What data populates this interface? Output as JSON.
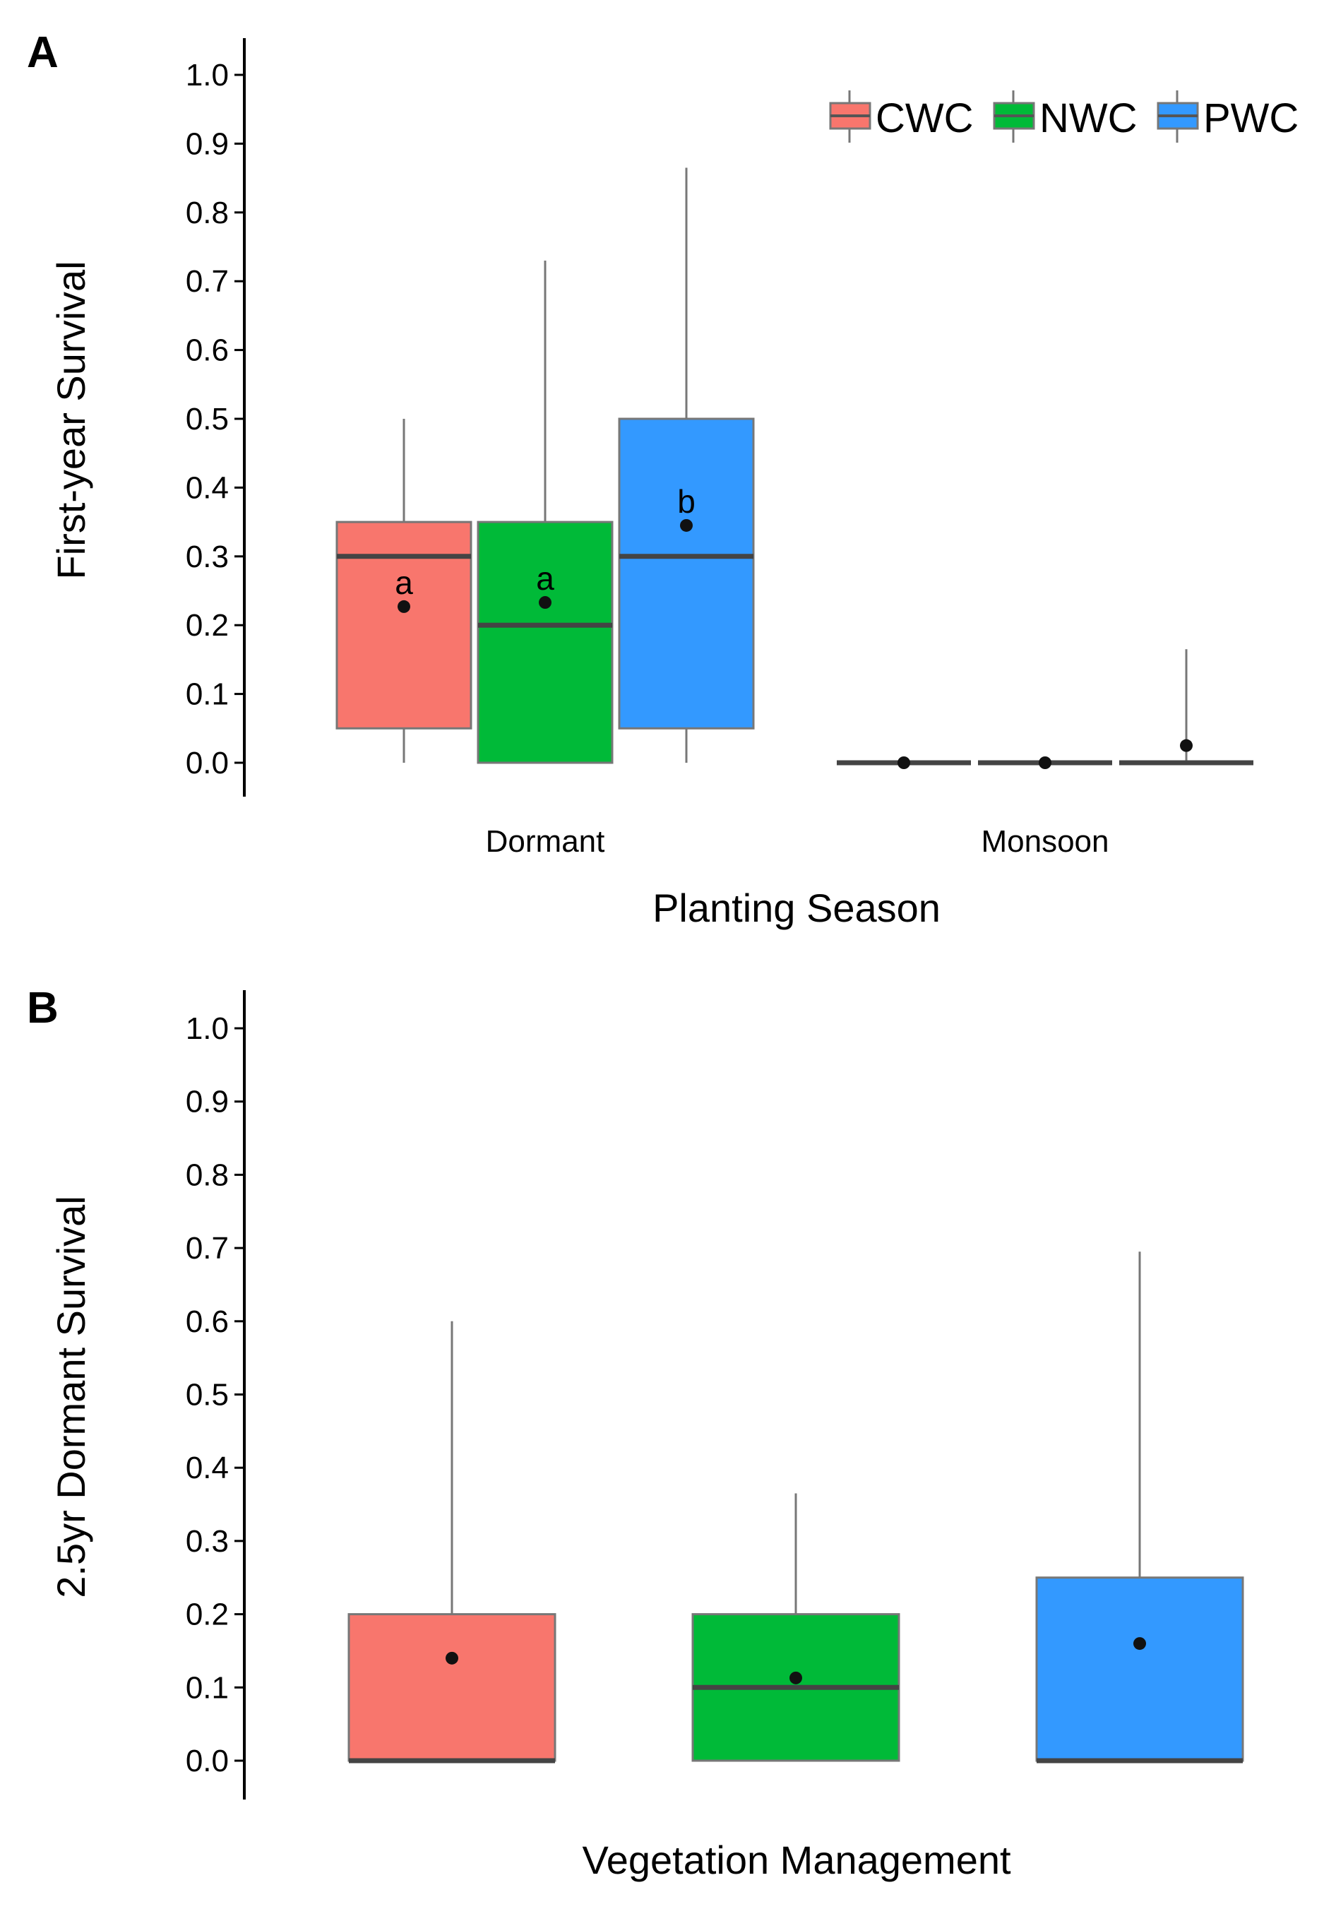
{
  "legend": {
    "entries": [
      {
        "label": "CWC",
        "color": "#F8766D"
      },
      {
        "label": "NWC",
        "color": "#00BA38"
      },
      {
        "label": "PWC",
        "color": "#3399FF"
      }
    ]
  },
  "chart_data": [
    {
      "panel": "A",
      "type": "box",
      "xlabel": "Planting Season",
      "ylabel": "First-year Survival",
      "ylim": [
        0,
        1
      ],
      "yticks": [
        0.0,
        0.1,
        0.2,
        0.3,
        0.4,
        0.5,
        0.6,
        0.7,
        0.8,
        0.9,
        1.0
      ],
      "ytick_labels": [
        "0.0",
        "0.1",
        "0.2",
        "0.3",
        "0.4",
        "0.5",
        "0.6",
        "0.7",
        "0.8",
        "0.9",
        "1.0"
      ],
      "categories": [
        "Dormant",
        "Monsoon"
      ],
      "legend_position": "top-right",
      "grid": false,
      "groups": [
        {
          "category": "Dormant",
          "boxes": [
            {
              "series": "CWC",
              "color": "#F8766D",
              "whisker_low": 0.0,
              "q1": 0.05,
              "median": 0.3,
              "q3": 0.35,
              "whisker_high": 0.5,
              "mean": 0.227,
              "label": "a"
            },
            {
              "series": "NWC",
              "color": "#00BA38",
              "whisker_low": 0.0,
              "q1": 0.0,
              "median": 0.2,
              "q3": 0.35,
              "whisker_high": 0.73,
              "mean": 0.233,
              "label": "a"
            },
            {
              "series": "PWC",
              "color": "#3399FF",
              "whisker_low": 0.0,
              "q1": 0.05,
              "median": 0.3,
              "q3": 0.5,
              "whisker_high": 0.865,
              "mean": 0.345,
              "label": "b"
            }
          ]
        },
        {
          "category": "Monsoon",
          "boxes": [
            {
              "series": "CWC",
              "color": "#F8766D",
              "whisker_low": 0.0,
              "q1": 0.0,
              "median": 0.0,
              "q3": 0.0,
              "whisker_high": 0.0,
              "mean": 0.0,
              "label": ""
            },
            {
              "series": "NWC",
              "color": "#00BA38",
              "whisker_low": 0.0,
              "q1": 0.0,
              "median": 0.0,
              "q3": 0.0,
              "whisker_high": 0.0,
              "mean": 0.0,
              "label": ""
            },
            {
              "series": "PWC",
              "color": "#3399FF",
              "whisker_low": 0.0,
              "q1": 0.0,
              "median": 0.0,
              "q3": 0.0,
              "whisker_high": 0.165,
              "mean": 0.025,
              "label": ""
            }
          ]
        }
      ]
    },
    {
      "panel": "B",
      "type": "box",
      "xlabel": "Vegetation Management",
      "ylabel": "2.5yr Dormant Survival",
      "ylim": [
        0,
        1
      ],
      "yticks": [
        0.0,
        0.1,
        0.2,
        0.3,
        0.4,
        0.5,
        0.6,
        0.7,
        0.8,
        0.9,
        1.0
      ],
      "ytick_labels": [
        "0.0",
        "0.1",
        "0.2",
        "0.3",
        "0.4",
        "0.5",
        "0.6",
        "0.7",
        "0.8",
        "0.9",
        "1.0"
      ],
      "grid": false,
      "boxes": [
        {
          "series": "CWC",
          "color": "#F8766D",
          "whisker_low": 0.0,
          "q1": 0.0,
          "median": 0.0,
          "q3": 0.2,
          "whisker_high": 0.6,
          "mean": 0.14
        },
        {
          "series": "NWC",
          "color": "#00BA38",
          "whisker_low": 0.0,
          "q1": 0.0,
          "median": 0.1,
          "q3": 0.2,
          "whisker_high": 0.365,
          "mean": 0.113
        },
        {
          "series": "PWC",
          "color": "#3399FF",
          "whisker_low": 0.0,
          "q1": 0.0,
          "median": 0.0,
          "q3": 0.25,
          "whisker_high": 0.695,
          "mean": 0.16
        }
      ]
    }
  ]
}
